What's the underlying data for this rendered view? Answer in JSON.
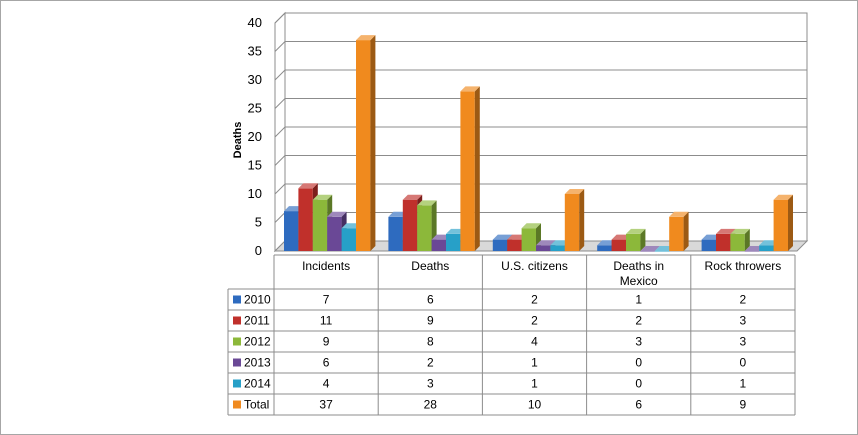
{
  "chart_data": {
    "type": "bar",
    "ylabel": "Deaths",
    "ylim": [
      0,
      40
    ],
    "yticks": [
      0,
      5,
      10,
      15,
      20,
      25,
      30,
      35,
      40
    ],
    "categories": [
      "Incidents",
      "Deaths",
      "U.S. citizens",
      "Deaths in Mexico",
      "Rock throwers"
    ],
    "categories_display": [
      [
        "Incidents"
      ],
      [
        "Deaths"
      ],
      [
        "U.S. citizens"
      ],
      [
        "Deaths in",
        "Mexico"
      ],
      [
        "Rock throwers"
      ]
    ],
    "series": [
      {
        "name": "2010",
        "color": "#2e6bbf",
        "values": [
          7,
          6,
          2,
          1,
          2
        ]
      },
      {
        "name": "2011",
        "color": "#c0302b",
        "values": [
          11,
          9,
          2,
          2,
          3
        ]
      },
      {
        "name": "2012",
        "color": "#8cb83a",
        "values": [
          9,
          8,
          4,
          3,
          3
        ]
      },
      {
        "name": "2013",
        "color": "#6a4896",
        "values": [
          6,
          2,
          1,
          0,
          0
        ]
      },
      {
        "name": "2014",
        "color": "#27a0c8",
        "values": [
          4,
          3,
          1,
          0,
          1
        ]
      },
      {
        "name": "Total",
        "color": "#f08a1e",
        "values": [
          37,
          28,
          10,
          6,
          9
        ]
      }
    ],
    "grid": true,
    "legend": "data-table"
  }
}
